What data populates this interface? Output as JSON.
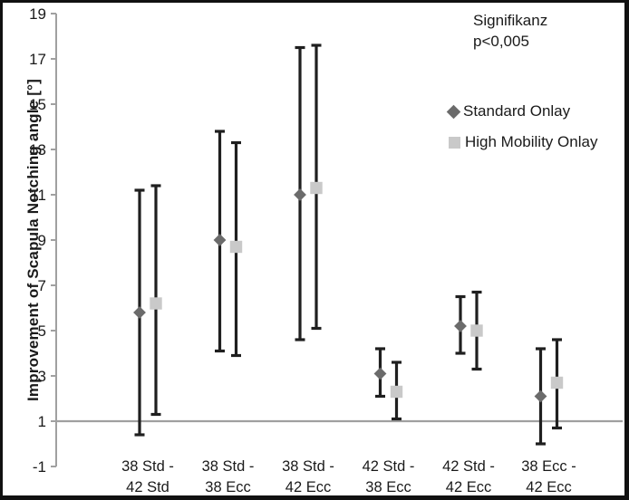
{
  "colors": {
    "standard_marker": "#6b6b6b",
    "high_mobility_marker": "#c9c9c9",
    "error_bar": "#1f1f1f",
    "axis_line": "#a0a0a0",
    "text": "#1a1a1a",
    "background": "#ffffff",
    "frame_border": "#111111"
  },
  "annotation": {
    "line1": "Signifikanz",
    "line2": "p<0,005"
  },
  "legend": {
    "items": [
      {
        "label": "Standard Onlay",
        "marker": "diamond-icon",
        "color": "#6b6b6b"
      },
      {
        "label": "High Mobility Onlay",
        "marker": "square-icon",
        "color": "#c9c9c9"
      }
    ]
  },
  "chart_data": {
    "type": "scatter",
    "title": "",
    "xlabel": "",
    "ylabel": "Improvement of Scapula Notching angle [°]",
    "axis": {
      "ymin": -1,
      "ymax": 19,
      "tick_step": 2,
      "cross_at": 1,
      "ticks": [
        19,
        17,
        15,
        13,
        11,
        9,
        7,
        5,
        3,
        1,
        -1
      ]
    },
    "grid": "single horizontal axis line at y=1",
    "legend_position": "right",
    "categories": [
      [
        "38 Std -",
        "42 Std"
      ],
      [
        "38 Std -",
        "38 Ecc"
      ],
      [
        "38 Std -",
        "42 Ecc"
      ],
      [
        "42 Std -",
        "38 Ecc"
      ],
      [
        "42 Std -",
        "42 Ecc"
      ],
      [
        "38 Ecc -",
        "42 Ecc"
      ]
    ],
    "series": [
      {
        "name": "Standard Onlay",
        "marker": "diamond",
        "color": "#6b6b6b",
        "means": [
          5.8,
          9.0,
          11.0,
          3.1,
          5.2,
          2.1
        ],
        "err_low": [
          0.4,
          4.1,
          4.6,
          2.1,
          4.0,
          0.0
        ],
        "err_high": [
          11.2,
          13.8,
          17.5,
          4.2,
          6.5,
          4.2
        ]
      },
      {
        "name": "High Mobility Onlay",
        "marker": "square",
        "color": "#c9c9c9",
        "means": [
          6.2,
          8.7,
          11.3,
          2.3,
          5.0,
          2.7
        ],
        "err_low": [
          1.3,
          3.9,
          5.1,
          1.1,
          3.3,
          0.7
        ],
        "err_high": [
          11.4,
          13.3,
          17.6,
          3.6,
          6.7,
          4.6
        ]
      }
    ]
  }
}
